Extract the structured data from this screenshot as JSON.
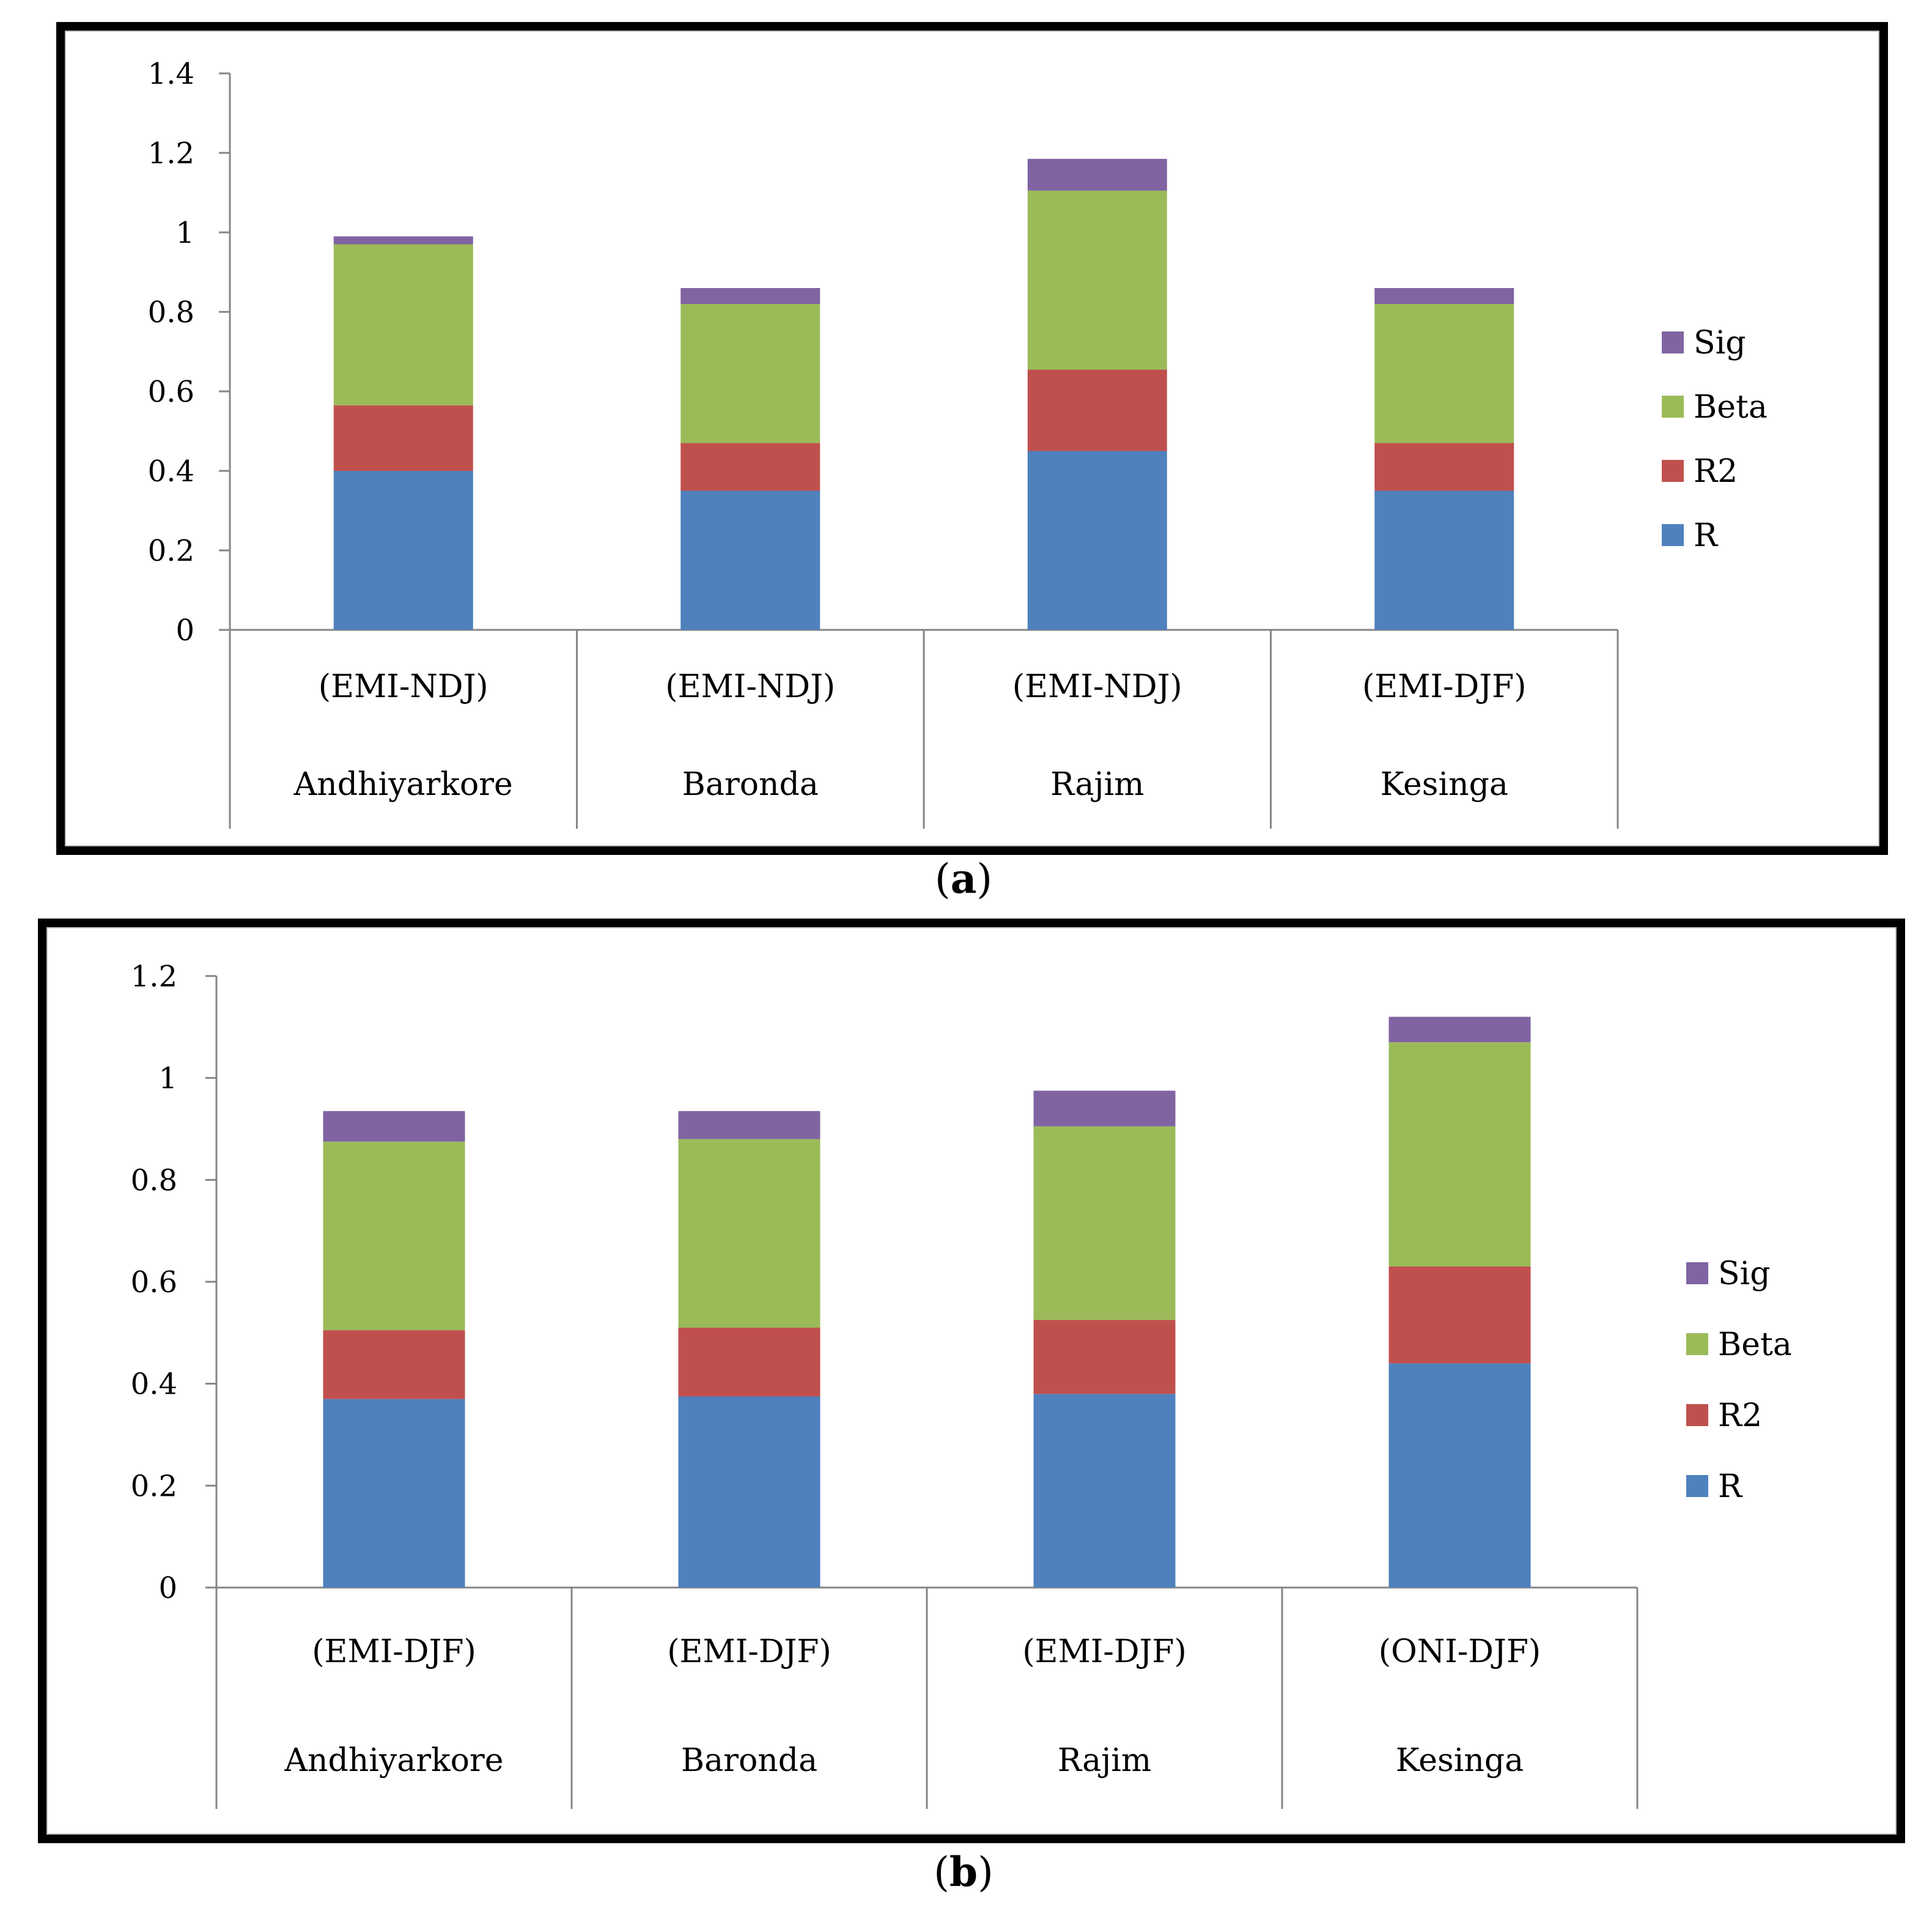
{
  "chart_data": [
    {
      "id": "a",
      "type": "bar",
      "stacked": true,
      "caption": "a",
      "categories": [
        {
          "index": "(EMI-NDJ)",
          "station": "Andhiyarkore"
        },
        {
          "index": "(EMI-NDJ)",
          "station": "Baronda"
        },
        {
          "index": "(EMI-NDJ)",
          "station": "Rajim"
        },
        {
          "index": "(EMI-DJF)",
          "station": "Kesinga"
        }
      ],
      "series": [
        {
          "name": "R",
          "color": "#4F81BD",
          "values": [
            0.4,
            0.35,
            0.45,
            0.35
          ]
        },
        {
          "name": "R2",
          "color": "#C0504D",
          "values": [
            0.165,
            0.12,
            0.205,
            0.12
          ]
        },
        {
          "name": "Beta",
          "color": "#9BBB59",
          "values": [
            0.405,
            0.35,
            0.45,
            0.35
          ]
        },
        {
          "name": "Sig",
          "color": "#8064A2",
          "values": [
            0.02,
            0.04,
            0.08,
            0.04
          ]
        }
      ],
      "ylim": [
        0,
        1.4
      ],
      "yticks": [
        "0",
        "0.2",
        "0.4",
        "0.6",
        "0.8",
        "1",
        "1.2",
        "1.4"
      ],
      "legend_position": "right",
      "xlabel": "",
      "ylabel": "",
      "title": ""
    },
    {
      "id": "b",
      "type": "bar",
      "stacked": true,
      "caption": "b",
      "categories": [
        {
          "index": "(EMI-DJF)",
          "station": "Andhiyarkore"
        },
        {
          "index": "(EMI-DJF)",
          "station": "Baronda"
        },
        {
          "index": "(EMI-DJF)",
          "station": "Rajim"
        },
        {
          "index": "(ONI-DJF)",
          "station": "Kesinga"
        }
      ],
      "series": [
        {
          "name": "R",
          "color": "#4F81BD",
          "values": [
            0.37,
            0.375,
            0.38,
            0.44
          ]
        },
        {
          "name": "R2",
          "color": "#C0504D",
          "values": [
            0.135,
            0.135,
            0.145,
            0.19
          ]
        },
        {
          "name": "Beta",
          "color": "#9BBB59",
          "values": [
            0.37,
            0.37,
            0.38,
            0.44
          ]
        },
        {
          "name": "Sig",
          "color": "#8064A2",
          "values": [
            0.06,
            0.055,
            0.07,
            0.05
          ]
        }
      ],
      "ylim": [
        0,
        1.2
      ],
      "yticks": [
        "0",
        "0.2",
        "0.4",
        "0.6",
        "0.8",
        "1",
        "1.2"
      ],
      "legend_position": "right",
      "xlabel": "",
      "ylabel": "",
      "title": ""
    }
  ]
}
